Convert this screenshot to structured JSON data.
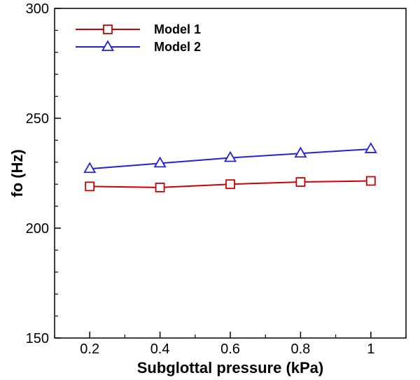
{
  "chart_data": {
    "type": "line",
    "title": "",
    "xlabel": "Subglottal pressure (kPa)",
    "ylabel": "fo (Hz)",
    "xlim": [
      0.1,
      1.1
    ],
    "ylim": [
      150,
      300
    ],
    "x": [
      0.2,
      0.4,
      0.6,
      0.8,
      1.0
    ],
    "xticks": [
      0.2,
      0.4,
      0.6,
      0.8,
      1.0
    ],
    "xtick_labels": [
      "0.2",
      "0.4",
      "0.6",
      "0.8",
      "1"
    ],
    "yticks": [
      150,
      200,
      250,
      300
    ],
    "ytick_labels": [
      "150",
      "200",
      "250",
      "300"
    ],
    "grid": false,
    "legend_position": "top-left",
    "series": [
      {
        "name": "Model 1",
        "values": [
          219,
          218.5,
          220,
          221,
          221.5
        ],
        "color": "#cc0000",
        "marker": "square"
      },
      {
        "name": "Model 2",
        "values": [
          227,
          229.5,
          232,
          234,
          236
        ],
        "color": "#2222dd",
        "marker": "triangle"
      }
    ]
  }
}
